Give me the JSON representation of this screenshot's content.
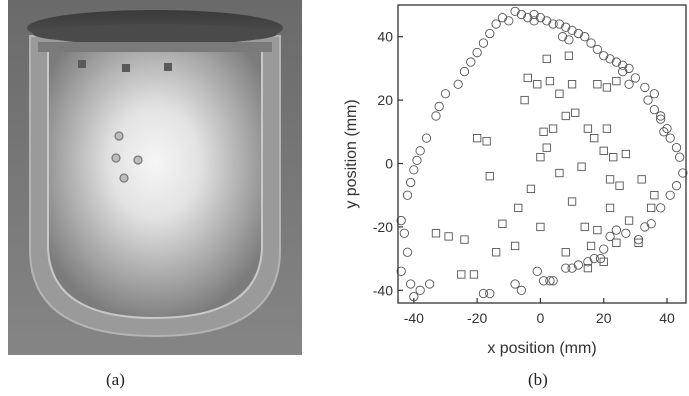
{
  "panels": {
    "a": {
      "caption": "(a)"
    },
    "b": {
      "caption": "(b)"
    }
  },
  "chart_data": {
    "type": "scatter",
    "xlabel": "x position (mm)",
    "ylabel": "y position (mm)",
    "xlim": [
      -45,
      46
    ],
    "ylim": [
      -44,
      50
    ],
    "xticks": [
      -40,
      -20,
      0,
      20,
      40
    ],
    "yticks": [
      -40,
      -20,
      0,
      20,
      40
    ],
    "grid": false,
    "series": [
      {
        "marker": "circle",
        "points": [
          [
            -12,
            46
          ],
          [
            -10,
            45
          ],
          [
            -8,
            48
          ],
          [
            -6,
            47
          ],
          [
            -4,
            46
          ],
          [
            -2,
            45
          ],
          [
            -14,
            44
          ],
          [
            -16,
            41
          ],
          [
            -18,
            38
          ],
          [
            -20,
            35
          ],
          [
            -22,
            32
          ],
          [
            -24,
            29
          ],
          [
            -26,
            25
          ],
          [
            -30,
            22
          ],
          [
            -32,
            18
          ],
          [
            -33,
            15
          ],
          [
            -36,
            8
          ],
          [
            -38,
            4
          ],
          [
            -39,
            1
          ],
          [
            -40,
            -2
          ],
          [
            -41,
            -6
          ],
          [
            -42,
            -10
          ],
          [
            -44,
            -18
          ],
          [
            -43,
            -22
          ],
          [
            -42,
            -28
          ],
          [
            -44,
            -34
          ],
          [
            -41,
            -38
          ],
          [
            -40,
            -42
          ],
          [
            -38,
            -40
          ],
          [
            -35,
            -38
          ],
          [
            -18,
            -41
          ],
          [
            -16,
            -41
          ],
          [
            -8,
            -38
          ],
          [
            -6,
            -40
          ],
          [
            -1,
            -34
          ],
          [
            1,
            -37
          ],
          [
            3,
            -37
          ],
          [
            4,
            -37
          ],
          [
            8,
            -33
          ],
          [
            10,
            -33
          ],
          [
            12,
            -32
          ],
          [
            15,
            -31
          ],
          [
            17,
            -30
          ],
          [
            19,
            -30
          ],
          [
            20,
            -27
          ],
          [
            22,
            -23
          ],
          [
            24,
            -21
          ],
          [
            27,
            -22
          ],
          [
            31,
            -24
          ],
          [
            33,
            -20
          ],
          [
            35,
            -19
          ],
          [
            38,
            -14
          ],
          [
            41,
            -10
          ],
          [
            43,
            -7
          ],
          [
            45,
            -3
          ],
          [
            44,
            2
          ],
          [
            43,
            5
          ],
          [
            41,
            8
          ],
          [
            40,
            11
          ],
          [
            38,
            14
          ],
          [
            36,
            17
          ],
          [
            34,
            20
          ],
          [
            33,
            24
          ],
          [
            30,
            27
          ],
          [
            28,
            30
          ],
          [
            26,
            31
          ],
          [
            24,
            32
          ],
          [
            22,
            33
          ],
          [
            20,
            34
          ],
          [
            18,
            36
          ],
          [
            16,
            38
          ],
          [
            14,
            40
          ],
          [
            12,
            41
          ],
          [
            10,
            42
          ],
          [
            8,
            43
          ],
          [
            6,
            44
          ],
          [
            4,
            44
          ],
          [
            2,
            45
          ],
          [
            0,
            46
          ],
          [
            -2,
            47
          ],
          [
            7,
            40
          ],
          [
            9,
            39
          ],
          [
            36,
            22
          ],
          [
            38,
            15
          ],
          [
            39,
            10
          ],
          [
            26,
            29
          ],
          [
            28,
            25
          ]
        ]
      },
      {
        "marker": "square",
        "points": [
          [
            9,
            34
          ],
          [
            2,
            33
          ],
          [
            -4,
            27
          ],
          [
            -1,
            25
          ],
          [
            10,
            25
          ],
          [
            18,
            25
          ],
          [
            21,
            24
          ],
          [
            24,
            26
          ],
          [
            -20,
            8
          ],
          [
            -17,
            7
          ],
          [
            -16,
            -4
          ],
          [
            0,
            2
          ],
          [
            2,
            5
          ],
          [
            1,
            10
          ],
          [
            4,
            11
          ],
          [
            8,
            15
          ],
          [
            15,
            11
          ],
          [
            17,
            8
          ],
          [
            21,
            11
          ],
          [
            20,
            4
          ],
          [
            23,
            2
          ],
          [
            27,
            3
          ],
          [
            22,
            -5
          ],
          [
            25,
            -7
          ],
          [
            32,
            -5
          ],
          [
            36,
            -10
          ],
          [
            35,
            -14
          ],
          [
            -7,
            -14
          ],
          [
            -12,
            -19
          ],
          [
            -8,
            -26
          ],
          [
            -24,
            -24
          ],
          [
            -29,
            -23
          ],
          [
            -33,
            -22
          ],
          [
            -25,
            -35
          ],
          [
            -21,
            -35
          ],
          [
            10,
            -12
          ],
          [
            14,
            -20
          ],
          [
            18,
            -21
          ],
          [
            16,
            -26
          ],
          [
            24,
            -25
          ],
          [
            20,
            -31
          ],
          [
            8,
            -28
          ],
          [
            15,
            -33
          ],
          [
            -3,
            -8
          ],
          [
            6,
            -3
          ],
          [
            13,
            -1
          ],
          [
            -5,
            20
          ],
          [
            3,
            26
          ],
          [
            11,
            16
          ],
          [
            28,
            -18
          ],
          [
            31,
            -25
          ],
          [
            -14,
            -28
          ],
          [
            22,
            -14
          ],
          [
            6,
            22
          ],
          [
            0,
            -20
          ]
        ]
      }
    ]
  }
}
